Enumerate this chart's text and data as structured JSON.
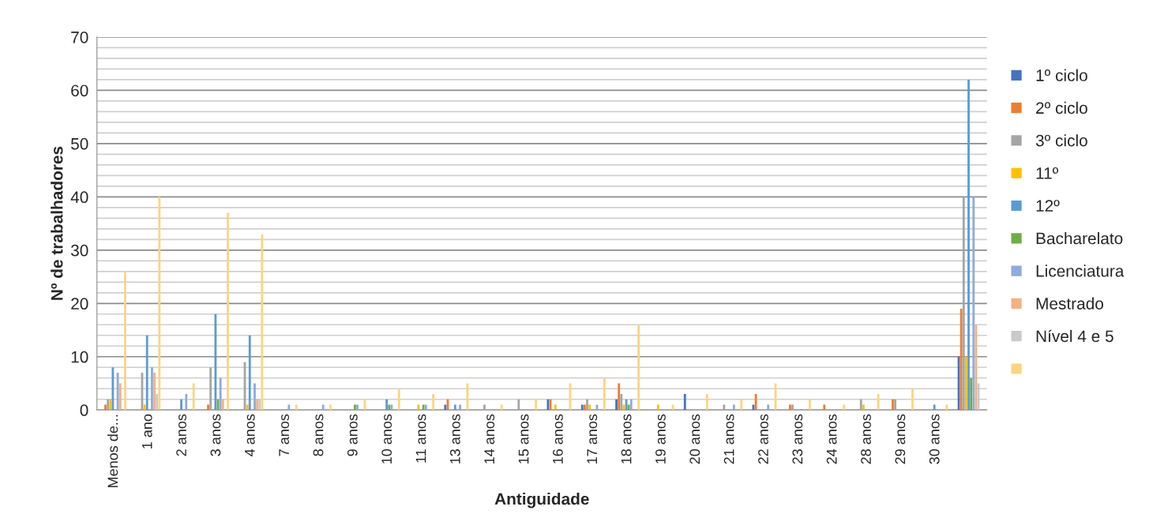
{
  "chart_data": {
    "type": "bar",
    "xlabel": "Antiguidade",
    "ylabel": "Nº de trabalhadores",
    "categories": [
      "Menos de...",
      "1 ano",
      "2 anos",
      "3 anos",
      "4 anos",
      "7 anos",
      "8 anos",
      "9 anos",
      "10 anos",
      "11 anos",
      "13 anos",
      "14 anos",
      "15 anos",
      "16 anos",
      "17 anos",
      "18 anos",
      "19 anos",
      "20 anos",
      "21 anos",
      "22 anos",
      "23 anos",
      "24 anos",
      "28 anos",
      "29 anos",
      "30 anos",
      null
    ],
    "series": [
      {
        "name": "1º ciclo",
        "color": "#4472c4",
        "values": [
          null,
          null,
          null,
          null,
          null,
          null,
          null,
          null,
          null,
          null,
          1,
          null,
          null,
          2,
          1,
          2,
          null,
          3,
          null,
          1,
          null,
          null,
          null,
          null,
          null,
          10
        ]
      },
      {
        "name": "2º ciclo",
        "color": "#ed7d31",
        "values": [
          1,
          null,
          null,
          1,
          null,
          null,
          null,
          null,
          null,
          null,
          2,
          null,
          null,
          2,
          1,
          5,
          null,
          null,
          null,
          3,
          1,
          1,
          null,
          2,
          null,
          19
        ]
      },
      {
        "name": "3º ciclo",
        "color": "#a5a5a5",
        "values": [
          2,
          7,
          null,
          8,
          9,
          null,
          null,
          null,
          null,
          null,
          null,
          1,
          2,
          null,
          2,
          3,
          null,
          null,
          1,
          null,
          1,
          null,
          2,
          2,
          null,
          40
        ]
      },
      {
        "name": "11º",
        "color": "#ffc000",
        "values": [
          2,
          1,
          null,
          null,
          1,
          null,
          null,
          null,
          null,
          1,
          null,
          null,
          null,
          1,
          1,
          1,
          1,
          null,
          null,
          null,
          null,
          null,
          1,
          null,
          null,
          10
        ]
      },
      {
        "name": "12º",
        "color": "#5b9bd5",
        "values": [
          8,
          14,
          2,
          18,
          14,
          null,
          null,
          null,
          2,
          null,
          1,
          null,
          null,
          null,
          null,
          2,
          null,
          null,
          null,
          null,
          null,
          null,
          null,
          null,
          1,
          62
        ]
      },
      {
        "name": "Bacharelato",
        "color": "#70ad47",
        "values": [
          null,
          null,
          null,
          2,
          null,
          null,
          null,
          1,
          1,
          1,
          null,
          null,
          null,
          null,
          null,
          1,
          null,
          null,
          null,
          null,
          null,
          null,
          null,
          null,
          null,
          6
        ]
      },
      {
        "name": "Licenciatura",
        "color": "#8faadc",
        "values": [
          7,
          8,
          3,
          6,
          5,
          1,
          1,
          1,
          1,
          1,
          1,
          null,
          null,
          null,
          1,
          2,
          null,
          null,
          1,
          1,
          null,
          null,
          null,
          null,
          null,
          40
        ]
      },
      {
        "name": "Mestrado",
        "color": "#f4b183",
        "values": [
          5,
          7,
          null,
          2,
          2,
          null,
          null,
          null,
          null,
          null,
          null,
          null,
          null,
          null,
          null,
          null,
          null,
          null,
          null,
          null,
          null,
          null,
          null,
          null,
          null,
          16
        ]
      },
      {
        "name": "Nível 4 e 5",
        "color": "#c9c9c9",
        "values": [
          null,
          3,
          null,
          null,
          2,
          null,
          null,
          null,
          null,
          null,
          null,
          null,
          null,
          null,
          null,
          null,
          null,
          null,
          null,
          null,
          null,
          null,
          null,
          null,
          null,
          5
        ]
      },
      {
        "color": "#ffd47f",
        "values": [
          26,
          40,
          5,
          37,
          33,
          1,
          1,
          2,
          4,
          3,
          5,
          1,
          2,
          5,
          6,
          16,
          1,
          3,
          2,
          5,
          2,
          1,
          3,
          4,
          1,
          null
        ]
      }
    ],
    "ylim": [
      0,
      70
    ],
    "yticks": [
      0,
      {
        "value": 2,
        "label": null
      },
      {
        "value": 4,
        "label": null
      },
      {
        "value": 6,
        "label": null
      },
      {
        "value": 8,
        "label": null
      },
      10,
      {
        "value": 12,
        "label": null
      },
      {
        "value": 14,
        "label": null
      },
      {
        "value": 16,
        "label": null
      },
      {
        "value": 18,
        "label": null
      },
      20,
      {
        "value": 22,
        "label": null
      },
      {
        "value": 24,
        "label": null
      },
      {
        "value": 26,
        "label": null
      },
      {
        "value": 28,
        "label": null
      },
      30,
      {
        "value": 32,
        "label": null
      },
      {
        "value": 34,
        "label": null
      },
      {
        "value": 36,
        "label": null
      },
      {
        "value": 38,
        "label": null
      },
      40,
      {
        "value": 42,
        "label": null
      },
      {
        "value": 44,
        "label": null
      },
      {
        "value": 46,
        "label": null
      },
      {
        "value": 48,
        "label": null
      },
      50,
      {
        "value": 52,
        "label": null
      },
      {
        "value": 54,
        "label": null
      },
      {
        "value": 56,
        "label": null
      },
      {
        "value": 58,
        "label": null
      },
      60,
      {
        "value": 62,
        "label": null
      },
      {
        "value": 64,
        "label": null
      },
      {
        "value": 66,
        "label": null
      },
      {
        "value": 68,
        "label": null
      },
      70
    ],
    "grid": "y",
    "legend": "right"
  }
}
